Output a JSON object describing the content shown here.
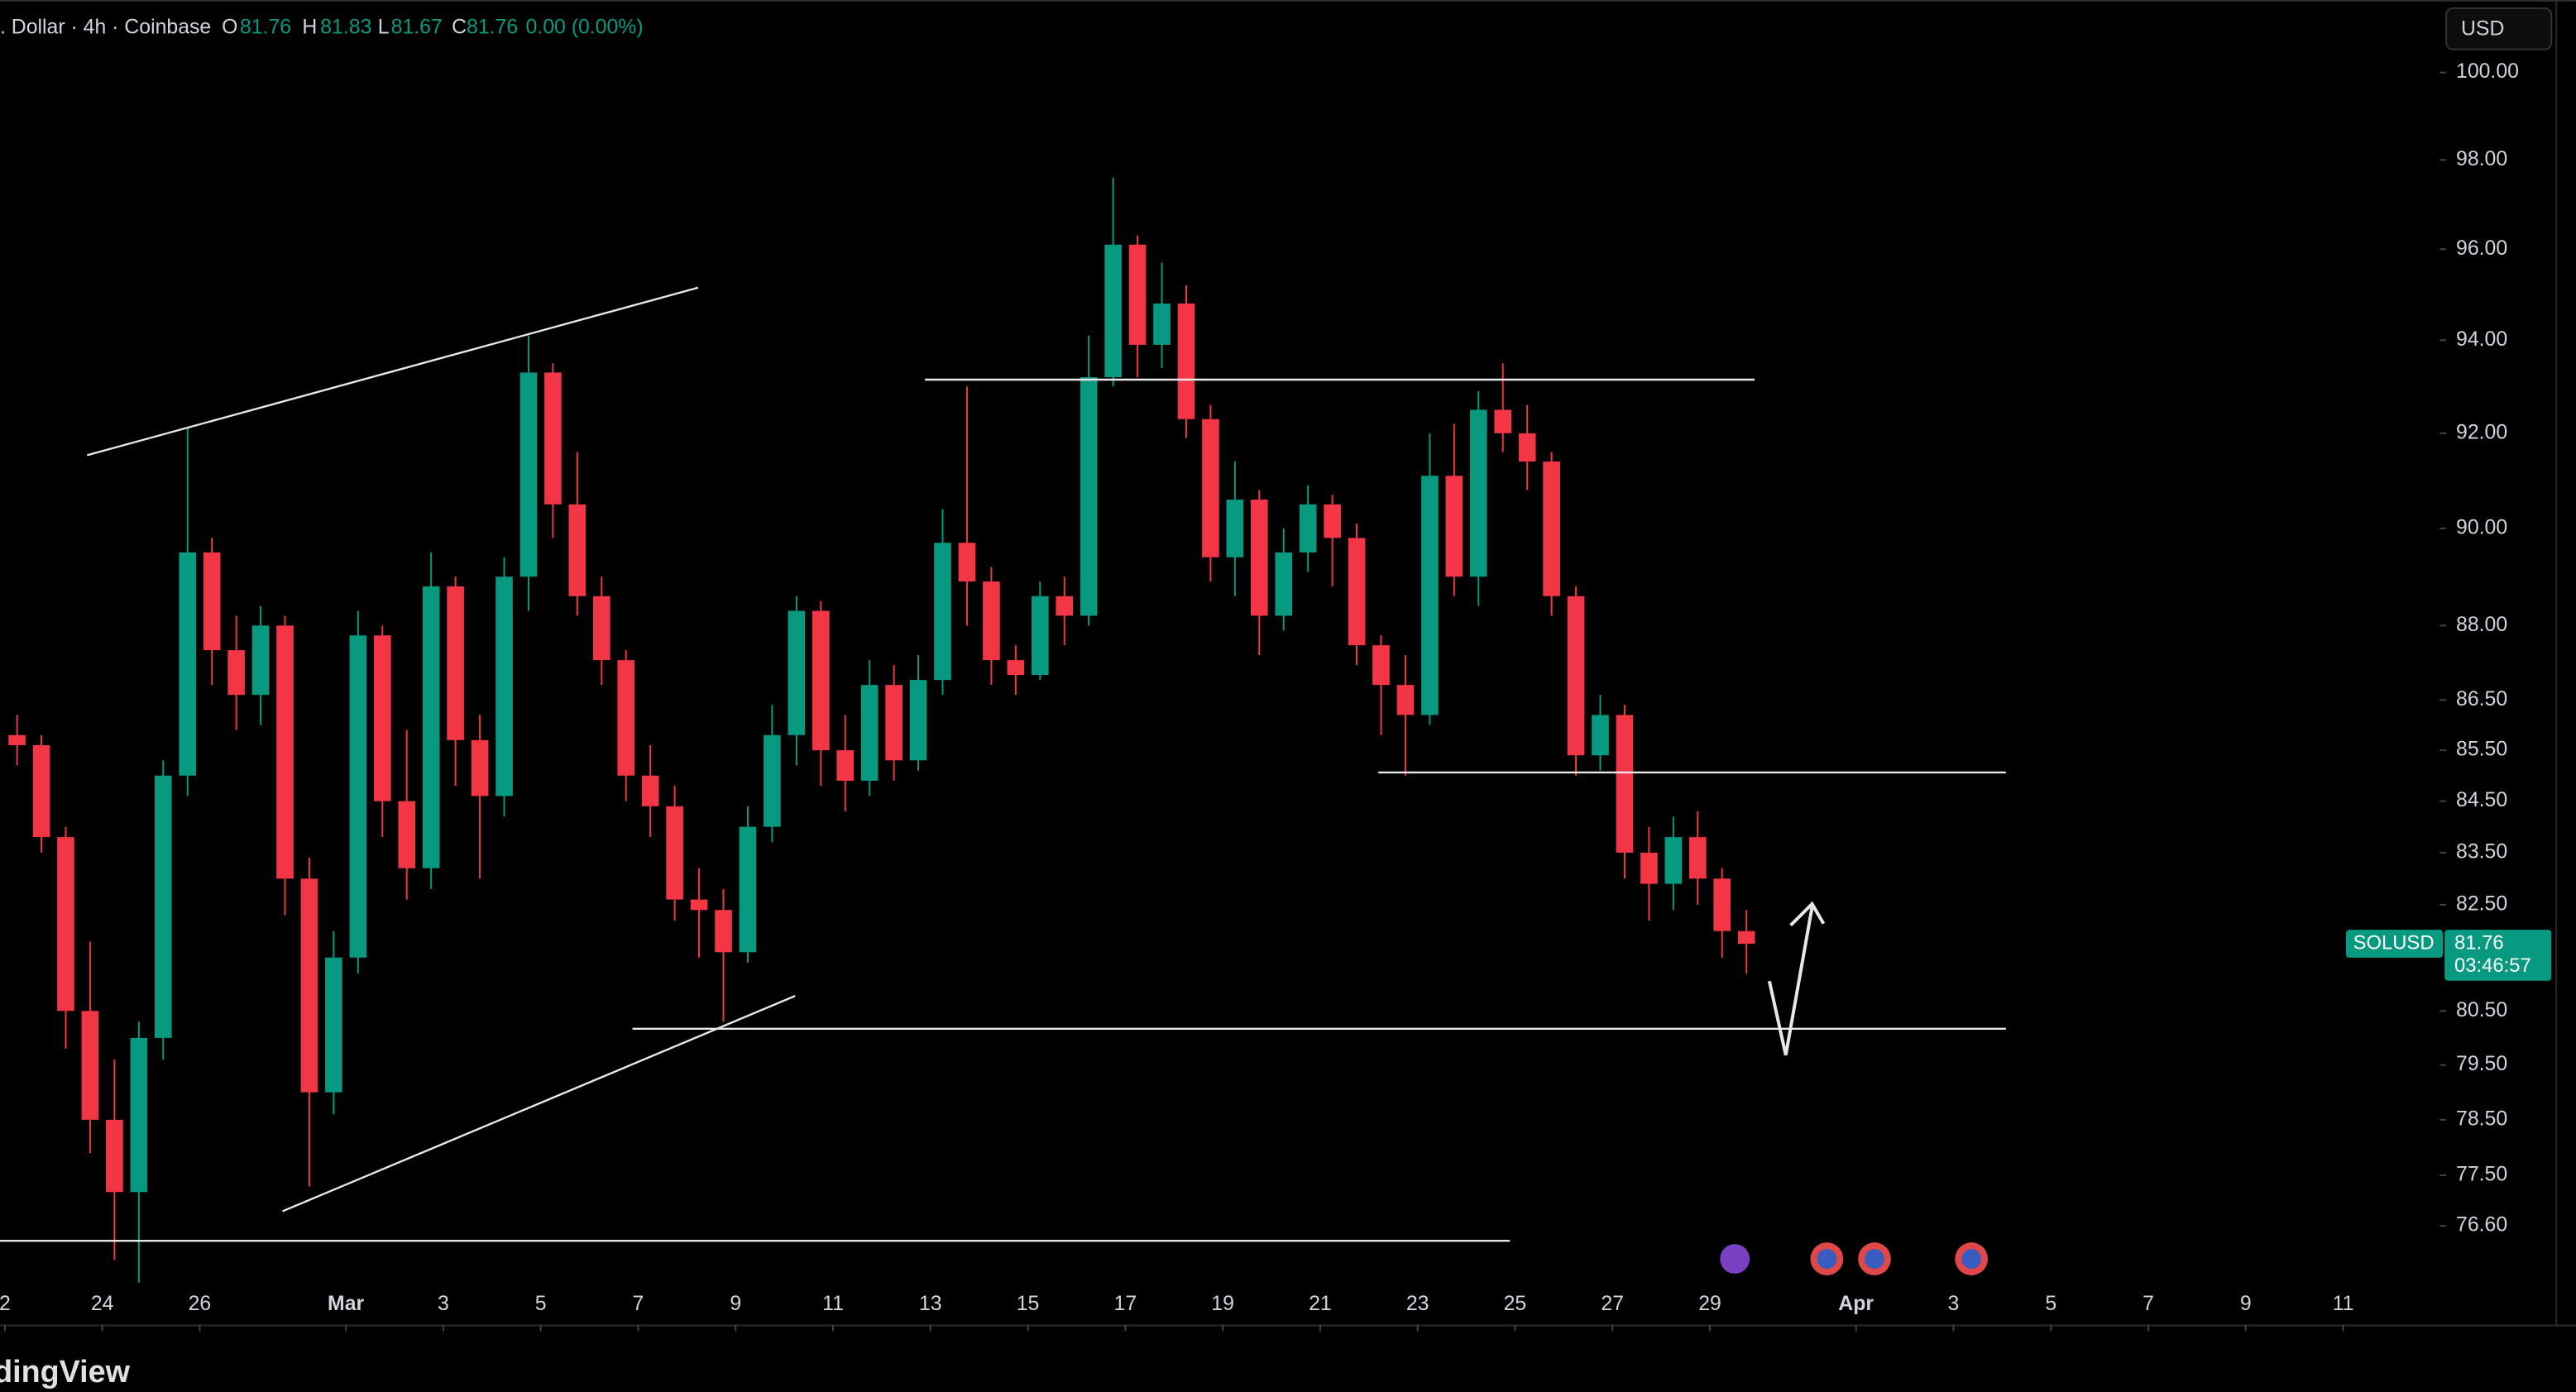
{
  "chart_data": {
    "type": "candlestick",
    "header": {
      "symbol": ". Dollar · 4h · Coinbase",
      "open_label": "O",
      "open": 81.76,
      "high_label": "H",
      "high": 81.83,
      "low_label": "L",
      "low": 81.67,
      "close_label": "C",
      "close": 81.76,
      "change": {
        "value": 0,
        "label": "0.00 (0.00%)"
      }
    },
    "currency": "USD",
    "last_price": {
      "symbol": "SOLUSD",
      "value": 81.76,
      "countdown": "03:46:57",
      "color": "#089981"
    },
    "watermark": "dingView",
    "up_color": "#089981",
    "down_color": "#f23645",
    "log_scale": true,
    "ylim": [
      74.87,
      101.69
    ],
    "yticks": [
      {
        "value": 100,
        "label": "100.00"
      },
      {
        "value": 98,
        "label": "98.00"
      },
      {
        "value": 96,
        "label": "96.00"
      },
      {
        "value": 94,
        "label": "94.00"
      },
      {
        "value": 92,
        "label": "92.00"
      },
      {
        "value": 90,
        "label": "90.00"
      },
      {
        "value": 88,
        "label": "88.00"
      },
      {
        "value": 86.5,
        "label": "86.50"
      },
      {
        "value": 85.5,
        "label": "85.50"
      },
      {
        "value": 84.5,
        "label": "84.50"
      },
      {
        "value": 83.5,
        "label": "83.50"
      },
      {
        "value": 82.5,
        "label": "82.50"
      },
      {
        "value": 80.5,
        "label": "80.50"
      },
      {
        "value": 79.5,
        "label": "79.50"
      },
      {
        "value": 78.5,
        "label": "78.50"
      },
      {
        "value": 77.5,
        "label": "77.50"
      },
      {
        "value": 76.6,
        "label": "76.60"
      }
    ],
    "xlim": [
      52.9,
      102.98
    ],
    "xticks": [
      {
        "value": 53,
        "label": "2"
      },
      {
        "value": 55,
        "label": "24"
      },
      {
        "value": 57,
        "label": "26"
      },
      {
        "value": 60,
        "label": "Mar"
      },
      {
        "value": 62,
        "label": "3"
      },
      {
        "value": 64,
        "label": "5"
      },
      {
        "value": 66,
        "label": "7"
      },
      {
        "value": 68,
        "label": "9"
      },
      {
        "value": 70,
        "label": "11"
      },
      {
        "value": 72,
        "label": "13"
      },
      {
        "value": 74,
        "label": "15"
      },
      {
        "value": 76,
        "label": "17"
      },
      {
        "value": 78,
        "label": "19"
      },
      {
        "value": 80,
        "label": "21"
      },
      {
        "value": 82,
        "label": "23"
      },
      {
        "value": 84,
        "label": "25"
      },
      {
        "value": 86,
        "label": "27"
      },
      {
        "value": 88,
        "label": "29"
      },
      {
        "value": 91,
        "label": "Apr"
      },
      {
        "value": 93,
        "label": "3"
      },
      {
        "value": 95,
        "label": "5"
      },
      {
        "value": 97,
        "label": "7"
      },
      {
        "value": 99,
        "label": "9"
      },
      {
        "value": 101,
        "label": "11"
      }
    ],
    "x": [
      53,
      53.5,
      54,
      54.5,
      55,
      55.5,
      56,
      56.5,
      57,
      57.5,
      58,
      58.5,
      59,
      59.5,
      60,
      60.5,
      61,
      61.5,
      62,
      62.5,
      63,
      63.5,
      64,
      64.5,
      65,
      65.5,
      66,
      66.5,
      67,
      67.5,
      68,
      68.5,
      69,
      69.5,
      70,
      70.5,
      71,
      71.5,
      72,
      72.5,
      73,
      73.5,
      74,
      74.5,
      75,
      75.5,
      76,
      76.5,
      77,
      77.5,
      78,
      78.5,
      79,
      79.5,
      80,
      80.5,
      81,
      81.5,
      82,
      82.5,
      83,
      83.5,
      84,
      84.5,
      85,
      85.5,
      86,
      86.5,
      87,
      87.5,
      88,
      88.5
    ],
    "open": [
      85.8,
      85.6,
      83.8,
      80.5,
      78.5,
      77.2,
      80.0,
      85.0,
      89.5,
      87.5,
      86.6,
      88.0,
      83.0,
      79.0,
      81.5,
      87.8,
      84.5,
      83.2,
      88.8,
      85.7,
      84.6,
      89.0,
      93.3,
      90.5,
      88.6,
      87.3,
      85.0,
      84.4,
      82.6,
      82.4,
      81.6,
      84.0,
      85.8,
      88.3,
      85.5,
      84.9,
      86.8,
      85.3,
      86.9,
      89.7,
      88.9,
      87.3,
      87.0,
      88.6,
      88.2,
      93.2,
      96.1,
      93.9,
      94.8,
      92.3,
      89.4,
      90.6,
      88.2,
      89.5,
      90.5,
      89.8,
      87.6,
      86.8,
      86.2,
      91.1,
      89.0,
      92.5,
      92.0,
      91.4,
      88.6,
      85.4,
      86.2,
      83.5,
      82.9,
      83.8,
      83.0,
      82.0
    ],
    "high": [
      86.2,
      85.8,
      84,
      81.8,
      79.6,
      80.3,
      85.3,
      92.1,
      89.8,
      88.2,
      88.4,
      88.2,
      83.4,
      82.0,
      88.3,
      88.0,
      85.9,
      89.5,
      89.0,
      86.2,
      89.4,
      94.1,
      93.5,
      91.6,
      89.0,
      87.5,
      85.6,
      84.8,
      83.2,
      82.8,
      84.4,
      86.4,
      88.6,
      88.5,
      86.2,
      87.3,
      87.2,
      87.4,
      90.4,
      93.0,
      89.2,
      87.6,
      88.9,
      89.0,
      94.1,
      97.6,
      96.3,
      95.7,
      95.2,
      92.6,
      91.4,
      90.8,
      90.0,
      90.9,
      90.7,
      90.1,
      87.8,
      87.4,
      92.0,
      92.2,
      92.9,
      93.5,
      92.6,
      91.6,
      88.8,
      86.6,
      86.4,
      84.0,
      84.2,
      84.3,
      83.2,
      82.4
    ],
    "low": [
      85.2,
      83.5,
      79.8,
      77.9,
      76.0,
      75.6,
      79.6,
      84.6,
      86.8,
      85.9,
      86.0,
      82.3,
      77.3,
      78.6,
      81.2,
      83.8,
      82.6,
      82.8,
      84.8,
      83.0,
      84.2,
      88.3,
      89.8,
      88.2,
      86.8,
      84.5,
      83.8,
      82.2,
      81.5,
      80.3,
      81.4,
      83.7,
      85.2,
      84.8,
      84.3,
      84.6,
      84.9,
      85.1,
      86.6,
      88.0,
      86.8,
      86.6,
      86.9,
      87.6,
      88.0,
      93.0,
      93.2,
      93.4,
      91.9,
      88.9,
      88.6,
      87.4,
      87.9,
      89.1,
      88.8,
      87.2,
      85.8,
      85.0,
      86.0,
      88.6,
      88.4,
      91.6,
      90.8,
      88.2,
      85.0,
      85.1,
      83.0,
      82.2,
      82.4,
      82.5,
      81.5,
      81.2
    ],
    "close": [
      85.6,
      83.8,
      80.5,
      78.5,
      77.2,
      80.0,
      85.0,
      89.5,
      87.5,
      86.6,
      88.0,
      83.0,
      79.0,
      81.5,
      87.8,
      84.5,
      83.2,
      88.8,
      85.7,
      84.6,
      89.0,
      93.3,
      90.5,
      88.6,
      87.3,
      85.0,
      84.4,
      82.6,
      82.4,
      81.6,
      84.0,
      85.8,
      88.3,
      85.5,
      84.9,
      86.8,
      85.3,
      86.9,
      89.7,
      88.9,
      87.3,
      87.0,
      88.6,
      88.2,
      93.2,
      96.1,
      93.9,
      94.8,
      92.3,
      89.4,
      90.6,
      88.2,
      89.5,
      90.5,
      89.8,
      87.6,
      86.8,
      86.2,
      91.1,
      89.0,
      92.5,
      92.0,
      91.4,
      88.6,
      85.4,
      86.2,
      83.5,
      82.9,
      83.8,
      83.0,
      82.0,
      81.76
    ]
  }
}
